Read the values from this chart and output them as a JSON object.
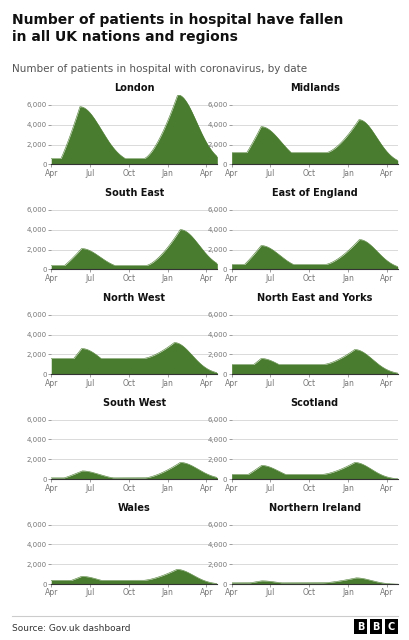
{
  "title_main": "Number of patients in hospital have fallen\nin all UK nations and regions",
  "title_sub": "Number of patients in hospital with coronavirus, by date",
  "source": "Source: Gov.uk dashboard",
  "fill_color": "#4a7c2f",
  "bg_color": "#ffffff",
  "tick_color": "#767676",
  "grid_color": "#cccccc",
  "regions": [
    "London",
    "Midlands",
    "South East",
    "East of England",
    "North West",
    "North East and Yorks",
    "South West",
    "Scotland",
    "Wales",
    "Northern Ireland"
  ],
  "ylim": 7000,
  "yticks": [
    0,
    2000,
    4000,
    6000
  ],
  "ytick_labels": [
    "0",
    "2,000",
    "4,000",
    "6,000"
  ],
  "date_labels": [
    "Apr",
    "Jul",
    "Oct",
    "Jan",
    "Apr"
  ],
  "n_points": 395,
  "tick_positions": [
    0,
    92,
    184,
    276,
    368
  ],
  "regions_data": {
    "London": {
      "wave1_peak": 5800,
      "wave1_peak_idx": 68,
      "wave1_sigma": 28,
      "wave1_onset": 15,
      "summer_low": 120,
      "wave2_pre_bump": 600,
      "wave2_pre_idx": 220,
      "wave2_pre_sigma": 20,
      "wave2_peak": 7000,
      "wave2_peak_idx": 300,
      "wave2_sigma": 30
    },
    "Midlands": {
      "wave1_peak": 3800,
      "wave1_peak_idx": 70,
      "wave1_sigma": 26,
      "wave1_onset": 15,
      "summer_low": 150,
      "wave2_pre_bump": 1200,
      "wave2_pre_idx": 225,
      "wave2_pre_sigma": 22,
      "wave2_peak": 4500,
      "wave2_peak_idx": 302,
      "wave2_sigma": 28
    },
    "South East": {
      "wave1_peak": 2100,
      "wave1_peak_idx": 72,
      "wave1_sigma": 24,
      "wave1_onset": 18,
      "summer_low": 80,
      "wave2_pre_bump": 400,
      "wave2_pre_idx": 225,
      "wave2_pre_sigma": 18,
      "wave2_peak": 4000,
      "wave2_peak_idx": 306,
      "wave2_sigma": 30
    },
    "East of England": {
      "wave1_peak": 2400,
      "wave1_peak_idx": 70,
      "wave1_sigma": 24,
      "wave1_onset": 16,
      "summer_low": 80,
      "wave2_pre_bump": 500,
      "wave2_pre_idx": 222,
      "wave2_pre_sigma": 18,
      "wave2_peak": 3000,
      "wave2_peak_idx": 303,
      "wave2_sigma": 28
    },
    "North West": {
      "wave1_peak": 2600,
      "wave1_peak_idx": 72,
      "wave1_sigma": 26,
      "wave1_onset": 16,
      "summer_low": 180,
      "wave2_pre_bump": 1600,
      "wave2_pre_idx": 218,
      "wave2_pre_sigma": 20,
      "wave2_peak": 3200,
      "wave2_peak_idx": 292,
      "wave2_sigma": 28
    },
    "North East and Yorks": {
      "wave1_peak": 1600,
      "wave1_peak_idx": 70,
      "wave1_sigma": 24,
      "wave1_onset": 16,
      "summer_low": 100,
      "wave2_pre_bump": 1000,
      "wave2_pre_idx": 218,
      "wave2_pre_sigma": 20,
      "wave2_peak": 2500,
      "wave2_peak_idx": 292,
      "wave2_sigma": 28
    },
    "South West": {
      "wave1_peak": 850,
      "wave1_peak_idx": 73,
      "wave1_sigma": 22,
      "wave1_onset": 18,
      "summer_low": 40,
      "wave2_pre_bump": 150,
      "wave2_pre_idx": 222,
      "wave2_pre_sigma": 16,
      "wave2_peak": 1700,
      "wave2_peak_idx": 306,
      "wave2_sigma": 28
    },
    "Scotland": {
      "wave1_peak": 1400,
      "wave1_peak_idx": 71,
      "wave1_sigma": 22,
      "wave1_onset": 16,
      "summer_low": 40,
      "wave2_pre_bump": 500,
      "wave2_pre_idx": 215,
      "wave2_pre_sigma": 18,
      "wave2_peak": 1700,
      "wave2_peak_idx": 292,
      "wave2_sigma": 26
    },
    "Wales": {
      "wave1_peak": 800,
      "wave1_peak_idx": 72,
      "wave1_sigma": 22,
      "wave1_onset": 17,
      "summer_low": 25,
      "wave2_pre_bump": 400,
      "wave2_pre_idx": 218,
      "wave2_pre_sigma": 16,
      "wave2_peak": 1500,
      "wave2_peak_idx": 298,
      "wave2_sigma": 26
    },
    "Northern Ireland": {
      "wave1_peak": 350,
      "wave1_peak_idx": 71,
      "wave1_sigma": 20,
      "wave1_onset": 16,
      "summer_low": 15,
      "wave2_pre_bump": 150,
      "wave2_pre_idx": 215,
      "wave2_pre_sigma": 14,
      "wave2_peak": 650,
      "wave2_peak_idx": 295,
      "wave2_sigma": 24
    }
  }
}
